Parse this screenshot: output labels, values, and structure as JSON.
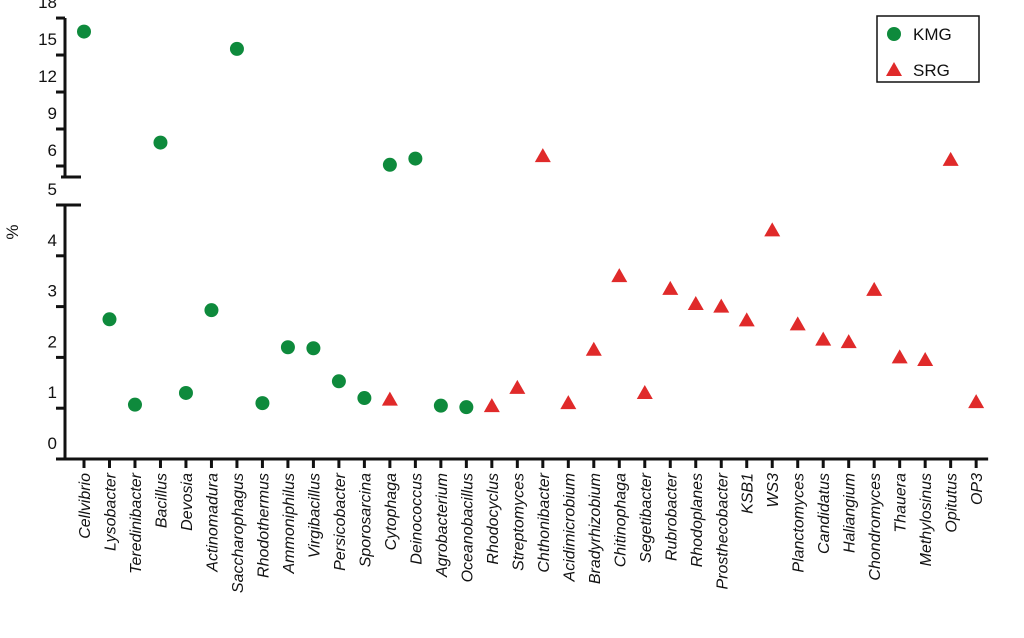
{
  "chart_data": {
    "type": "scatter",
    "title": "",
    "xlabel": "",
    "ylabel": "%",
    "axis_break": {
      "lower_range": [
        0,
        5
      ],
      "upper_range": [
        5,
        18
      ]
    },
    "yticks_lower": [
      "0",
      "1",
      "2",
      "3",
      "4",
      "5"
    ],
    "yticks_upper": [
      "6",
      "9",
      "12",
      "15",
      "18"
    ],
    "grid": false,
    "legend_position": "top-right",
    "categories": [
      "Cellvibrio",
      "Lysobacter",
      "Teredinibacter",
      "Bacillus",
      "Devosia",
      "Actinomadura",
      "Saccharophagus",
      "Rhodothermus",
      "Ammoniphilus",
      "Virgibacillus",
      "Persicobacter",
      "Sporosarcina",
      "Cytophaga",
      "Deinococcus",
      "Agrobacterium",
      "Oceanobacillus",
      "Rhodocyclus",
      "Streptomyces",
      "Chthonibacter",
      "Acidimicrobium",
      "Bradyrhizobium",
      "Chitinophaga",
      "Segetibacter",
      "Rubrobacter",
      "Rhodoplanes",
      "Prosthecobacter",
      "KSB1",
      "WS3",
      "Planctomyces",
      "Candidatus",
      "Haliangium",
      "Chondromyces",
      "Thauera",
      "Methylosinus",
      "Opitutus",
      "OP3"
    ],
    "series": [
      {
        "name": "KMG",
        "marker": "circle",
        "color": "#0e8a3c",
        "points": [
          {
            "category": "Cellvibrio",
            "value": 16.9
          },
          {
            "category": "Lysobacter",
            "value": 2.75
          },
          {
            "category": "Teredinibacter",
            "value": 1.07
          },
          {
            "category": "Bacillus",
            "value": 7.9
          },
          {
            "category": "Devosia",
            "value": 1.3
          },
          {
            "category": "Actinomadura",
            "value": 2.93
          },
          {
            "category": "Saccharophagus",
            "value": 15.5
          },
          {
            "category": "Rhodothermus",
            "value": 1.1
          },
          {
            "category": "Ammoniphilus",
            "value": 2.2
          },
          {
            "category": "Virgibacillus",
            "value": 2.18
          },
          {
            "category": "Persicobacter",
            "value": 1.53
          },
          {
            "category": "Sporosarcina",
            "value": 1.2
          },
          {
            "category": "Cytophaga",
            "value": 6.1
          },
          {
            "category": "Deinococcus",
            "value": 6.6
          },
          {
            "category": "Agrobacterium",
            "value": 1.05
          },
          {
            "category": "Oceanobacillus",
            "value": 1.02
          }
        ]
      },
      {
        "name": "SRG",
        "marker": "triangle",
        "color": "#e02a2a",
        "points": [
          {
            "category": "Cytophaga",
            "value": 1.17
          },
          {
            "category": "Rhodocyclus",
            "value": 1.04
          },
          {
            "category": "Streptomyces",
            "value": 1.4
          },
          {
            "category": "Chthonibacter",
            "value": 6.8
          },
          {
            "category": "Acidimicrobium",
            "value": 1.1
          },
          {
            "category": "Bradyrhizobium",
            "value": 2.15
          },
          {
            "category": "Chitinophaga",
            "value": 3.6
          },
          {
            "category": "Segetibacter",
            "value": 1.3
          },
          {
            "category": "Rubrobacter",
            "value": 3.35
          },
          {
            "category": "Rhodoplanes",
            "value": 3.05
          },
          {
            "category": "Prosthecobacter",
            "value": 3.0
          },
          {
            "category": "KSB1",
            "value": 2.73
          },
          {
            "category": "WS3",
            "value": 4.5
          },
          {
            "category": "Planctomyces",
            "value": 2.65
          },
          {
            "category": "Candidatus",
            "value": 2.35
          },
          {
            "category": "Haliangium",
            "value": 2.3
          },
          {
            "category": "Chondromyces",
            "value": 3.33
          },
          {
            "category": "Thauera",
            "value": 2.0
          },
          {
            "category": "Methylosinus",
            "value": 1.95
          },
          {
            "category": "Opitutus",
            "value": 6.5
          },
          {
            "category": "OP3",
            "value": 1.12
          }
        ]
      }
    ]
  }
}
